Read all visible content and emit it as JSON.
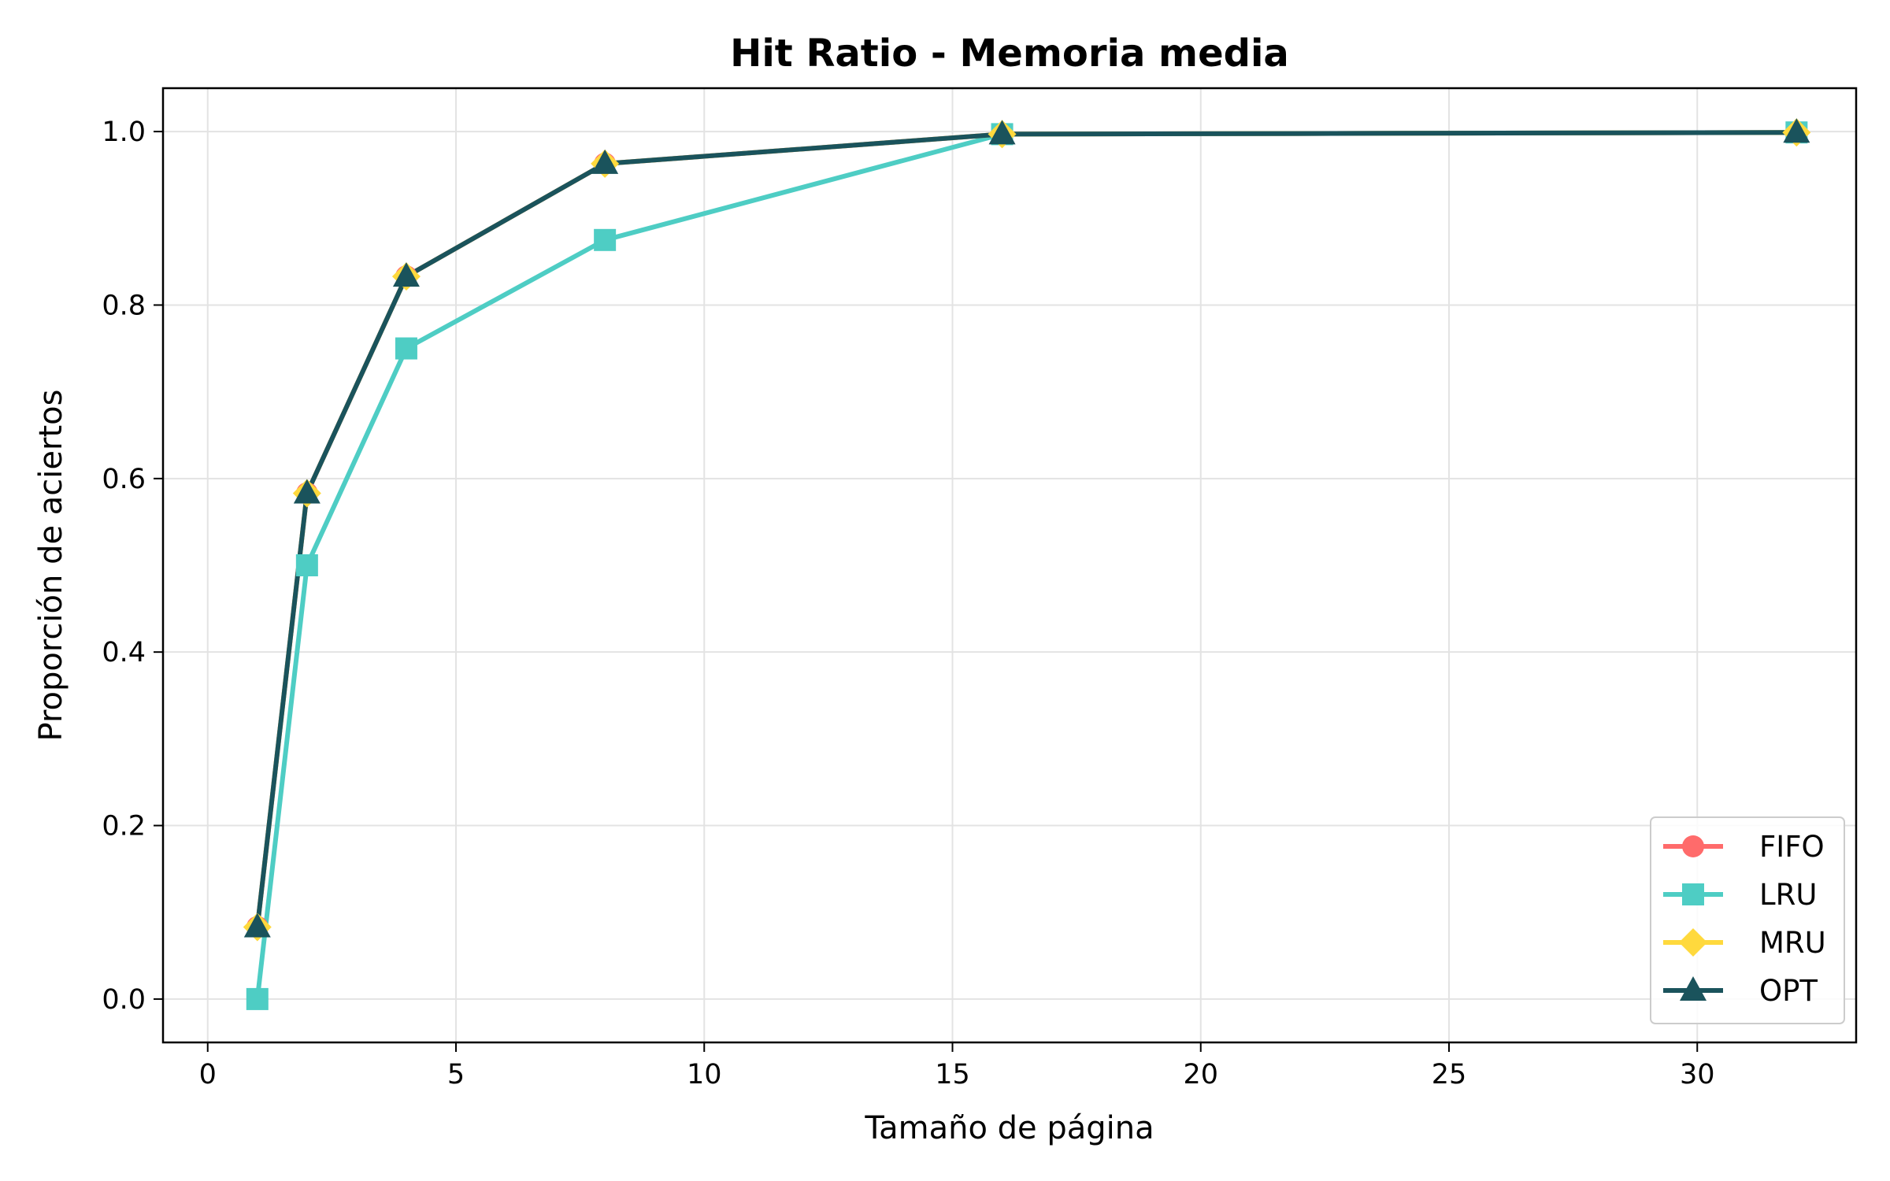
{
  "chart_data": {
    "type": "line",
    "title": "Hit Ratio - Memoria media",
    "xlabel": "Tamaño de página",
    "ylabel": "Proporción de aciertos",
    "xlim": [
      -0.9,
      33.2
    ],
    "ylim": [
      -0.05,
      1.05
    ],
    "x_ticks": [
      0,
      5,
      10,
      15,
      20,
      25,
      30
    ],
    "x_tick_labels": [
      "0",
      "5",
      "10",
      "15",
      "20",
      "25",
      "30"
    ],
    "y_ticks": [
      0.0,
      0.2,
      0.4,
      0.6,
      0.8,
      1.0
    ],
    "y_tick_labels": [
      "0.0",
      "0.2",
      "0.4",
      "0.6",
      "0.8",
      "1.0"
    ],
    "grid": true,
    "legend_position": "lower-right",
    "series": [
      {
        "name": "FIFO",
        "color": "#ff6b6b",
        "marker": "circle",
        "x": [
          1,
          2,
          4,
          8,
          16,
          32
        ],
        "y": [
          0.083,
          0.583,
          0.833,
          0.963,
          0.997,
          0.999
        ]
      },
      {
        "name": "LRU",
        "color": "#4ecdc4",
        "marker": "square",
        "x": [
          1,
          2,
          4,
          8,
          16,
          32
        ],
        "y": [
          0.0,
          0.5,
          0.75,
          0.875,
          0.997,
          0.999
        ]
      },
      {
        "name": "MRU",
        "color": "#ffd93d",
        "marker": "diamond",
        "x": [
          1,
          2,
          4,
          8,
          16,
          32
        ],
        "y": [
          0.083,
          0.583,
          0.833,
          0.963,
          0.997,
          0.999
        ]
      },
      {
        "name": "OPT",
        "color": "#1a535c",
        "marker": "triangle",
        "x": [
          1,
          2,
          4,
          8,
          16,
          32
        ],
        "y": [
          0.083,
          0.583,
          0.833,
          0.963,
          0.997,
          0.999
        ]
      }
    ]
  }
}
